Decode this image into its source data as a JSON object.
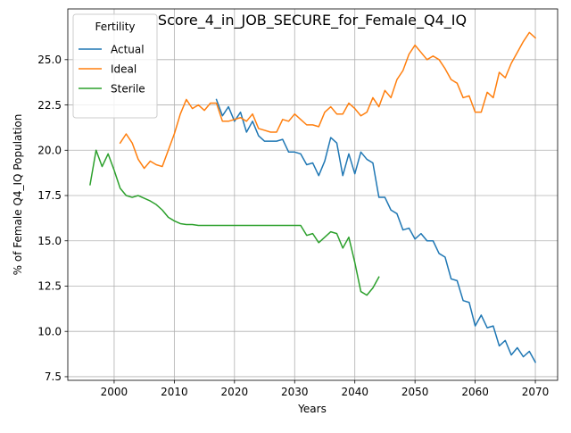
{
  "chart_data": {
    "type": "line",
    "title": "Score_4_in_JOB_SECURE_for_Female_Q4_IQ",
    "xlabel": "Years",
    "ylabel": "% of Female Q4_IQ Population",
    "xlim": [
      1992.3,
      2073.7
    ],
    "ylim": [
      7.3,
      27.8
    ],
    "xticks": [
      2000,
      2010,
      2020,
      2030,
      2040,
      2050,
      2060,
      2070
    ],
    "yticks": [
      7.5,
      10.0,
      12.5,
      15.0,
      17.5,
      20.0,
      22.5,
      25.0
    ],
    "grid": true,
    "legend": {
      "title": "Fertility",
      "placement": "top-left"
    },
    "series": [
      {
        "name": "Actual",
        "color": "#1f77b4",
        "x": [
          2017,
          2018,
          2019,
          2020,
          2021,
          2022,
          2023,
          2024,
          2025,
          2026,
          2027,
          2028,
          2029,
          2030,
          2031,
          2032,
          2033,
          2034,
          2035,
          2036,
          2037,
          2038,
          2039,
          2040,
          2041,
          2042,
          2043,
          2044,
          2045,
          2046,
          2047,
          2048,
          2049,
          2050,
          2051,
          2052,
          2053,
          2054,
          2055,
          2056,
          2057,
          2058,
          2059,
          2060,
          2061,
          2062,
          2063,
          2064,
          2065,
          2066,
          2067,
          2068,
          2069,
          2070
        ],
        "values": [
          22.8,
          21.9,
          22.4,
          21.6,
          22.1,
          21.0,
          21.6,
          20.8,
          20.5,
          20.5,
          20.5,
          20.6,
          19.9,
          19.9,
          19.8,
          19.2,
          19.3,
          18.6,
          19.4,
          20.7,
          20.4,
          18.6,
          19.8,
          18.7,
          19.9,
          19.5,
          19.3,
          17.4,
          17.4,
          16.7,
          16.5,
          15.6,
          15.7,
          15.1,
          15.4,
          15.0,
          15.0,
          14.3,
          14.1,
          12.9,
          12.8,
          11.7,
          11.6,
          10.3,
          10.9,
          10.2,
          10.3,
          9.2,
          9.5,
          8.7,
          9.1,
          8.6,
          8.9,
          8.3
        ]
      },
      {
        "name": "Ideal",
        "color": "#ff7f0e",
        "x": [
          2001,
          2002,
          2003,
          2004,
          2005,
          2006,
          2007,
          2008,
          2009,
          2010,
          2011,
          2012,
          2013,
          2014,
          2015,
          2016,
          2017,
          2018,
          2019,
          2020,
          2021,
          2022,
          2023,
          2024,
          2025,
          2026,
          2027,
          2028,
          2029,
          2030,
          2031,
          2032,
          2033,
          2034,
          2035,
          2036,
          2037,
          2038,
          2039,
          2040,
          2041,
          2042,
          2043,
          2044,
          2045,
          2046,
          2047,
          2048,
          2049,
          2050,
          2051,
          2052,
          2053,
          2054,
          2055,
          2056,
          2057,
          2058,
          2059,
          2060,
          2061,
          2062,
          2063,
          2064,
          2065,
          2066,
          2067,
          2068,
          2069,
          2070
        ],
        "values": [
          20.4,
          20.9,
          20.4,
          19.5,
          19.0,
          19.4,
          19.2,
          19.1,
          20.0,
          20.9,
          22.0,
          22.8,
          22.3,
          22.5,
          22.2,
          22.6,
          22.6,
          21.6,
          21.6,
          21.7,
          21.8,
          21.6,
          22.0,
          21.2,
          21.1,
          21.0,
          21.0,
          21.7,
          21.6,
          22.0,
          21.7,
          21.4,
          21.4,
          21.3,
          22.1,
          22.4,
          22.0,
          22.0,
          22.6,
          22.3,
          21.9,
          22.1,
          22.9,
          22.4,
          23.3,
          22.9,
          23.9,
          24.4,
          25.3,
          25.8,
          25.4,
          25.0,
          25.2,
          25.0,
          24.5,
          23.9,
          23.7,
          22.9,
          23.0,
          22.1,
          22.1,
          23.2,
          22.9,
          24.3,
          24.0,
          24.8,
          25.4,
          26.0,
          26.5,
          26.2
        ]
      },
      {
        "name": "Sterile",
        "color": "#2ca02c",
        "x": [
          1996,
          1997,
          1998,
          1999,
          2000,
          2001,
          2002,
          2003,
          2004,
          2005,
          2006,
          2007,
          2008,
          2009,
          2010,
          2011,
          2012,
          2013,
          2014,
          2015,
          2016,
          2017,
          2018,
          2019,
          2020,
          2021,
          2022,
          2023,
          2024,
          2025,
          2026,
          2027,
          2028,
          2029,
          2030,
          2031,
          2032,
          2033,
          2034,
          2035,
          2036,
          2037,
          2038,
          2039,
          2040,
          2041,
          2042,
          2043,
          2044
        ],
        "values": [
          18.1,
          20.0,
          19.1,
          19.8,
          18.9,
          17.9,
          17.5,
          17.4,
          17.5,
          17.35,
          17.2,
          17.0,
          16.7,
          16.3,
          16.1,
          15.95,
          15.9,
          15.9,
          15.85,
          15.85,
          15.85,
          15.85,
          15.85,
          15.85,
          15.85,
          15.85,
          15.85,
          15.85,
          15.85,
          15.85,
          15.85,
          15.85,
          15.85,
          15.85,
          15.85,
          15.85,
          15.3,
          15.4,
          14.9,
          15.2,
          15.5,
          15.4,
          14.6,
          15.2,
          13.8,
          12.2,
          12.0,
          12.4,
          13.0
        ]
      }
    ]
  }
}
